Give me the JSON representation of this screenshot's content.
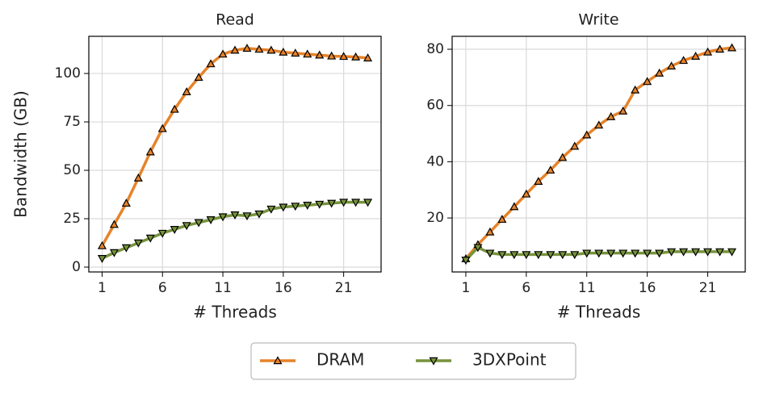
{
  "chart_data": [
    {
      "type": "line",
      "title": "Read",
      "xlabel": "# Threads",
      "ylabel": "Bandwidth (GB)",
      "x": [
        1,
        2,
        3,
        4,
        5,
        6,
        7,
        8,
        9,
        10,
        11,
        12,
        13,
        14,
        15,
        16,
        17,
        18,
        19,
        20,
        21,
        22,
        23
      ],
      "xlim": [
        -0.1,
        24.1
      ],
      "xticks": [
        1,
        6,
        11,
        16,
        21
      ],
      "ylim": [
        -2.5,
        119.2
      ],
      "yticks": [
        0,
        25,
        50,
        75,
        100
      ],
      "grid": true,
      "series": [
        {
          "name": "DRAM",
          "color": "#e6832a",
          "values": [
            11,
            22,
            33,
            46,
            59.5,
            71.5,
            81.5,
            90.5,
            98,
            105,
            110,
            112,
            113,
            112.5,
            112,
            111,
            110.5,
            110,
            109.5,
            109,
            108.8,
            108.5,
            108
          ]
        },
        {
          "name": "3DXPoint",
          "color": "#77933c",
          "values": [
            4.5,
            7.5,
            10,
            12.5,
            15,
            17.5,
            19.5,
            21.5,
            23,
            24.5,
            26,
            27,
            26.5,
            27.5,
            30,
            31,
            31.5,
            32,
            32.5,
            33,
            33.5,
            33.5,
            33.5
          ]
        }
      ]
    },
    {
      "type": "line",
      "title": "Write",
      "xlabel": "# Threads",
      "x": [
        1,
        2,
        3,
        4,
        5,
        6,
        7,
        8,
        9,
        10,
        11,
        12,
        13,
        14,
        15,
        16,
        17,
        18,
        19,
        20,
        21,
        22,
        23
      ],
      "xlim": [
        -0.13,
        24.1
      ],
      "xticks": [
        1,
        6,
        11,
        16,
        21
      ],
      "ylim": [
        0.8,
        84.6
      ],
      "yticks": [
        20,
        40,
        60,
        80
      ],
      "grid": true,
      "series": [
        {
          "name": "DRAM",
          "color": "#e6832a",
          "values": [
            5.5,
            10.5,
            15,
            19.5,
            24,
            28.5,
            33,
            37,
            41.5,
            45.5,
            49.5,
            53,
            56,
            58,
            65.5,
            68.5,
            71.5,
            74,
            76,
            77.5,
            79,
            80,
            80.5
          ]
        },
        {
          "name": "3DXPoint",
          "color": "#77933c",
          "values": [
            5,
            9.5,
            7.5,
            7,
            7,
            7,
            7,
            7,
            7,
            7,
            7.5,
            7.5,
            7.5,
            7.5,
            7.5,
            7.5,
            7.5,
            8,
            8,
            8,
            8,
            8,
            8
          ]
        }
      ]
    }
  ]
}
